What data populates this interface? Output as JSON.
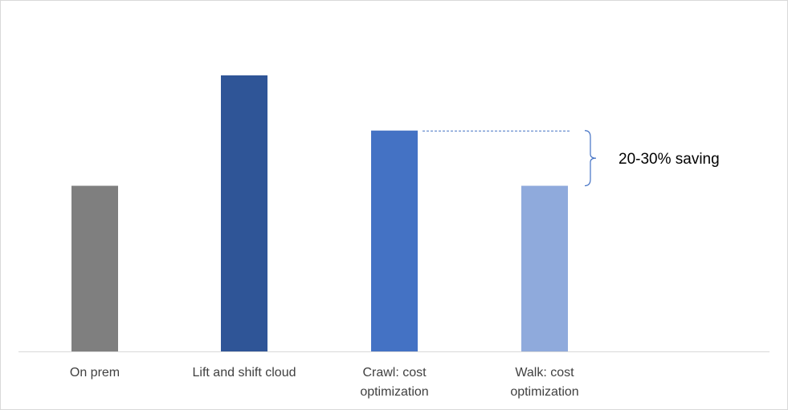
{
  "chart_data": {
    "type": "bar",
    "categories": [
      [
        "On prem"
      ],
      [
        "Lift and shift cloud"
      ],
      [
        "Crawl: cost",
        "optimization"
      ],
      [
        "Walk: cost",
        "optimization"
      ]
    ],
    "values": [
      60,
      100,
      80,
      60
    ],
    "colors": [
      "#7f7f7f",
      "#2f5597",
      "#4472c4",
      "#8faadc"
    ],
    "ylim": [
      0,
      127
    ],
    "grid": false,
    "legend": "none",
    "title": "",
    "xlabel": "",
    "ylabel": "",
    "annotation": {
      "text": "20-30% saving",
      "from_category": 2,
      "to_category": 3,
      "line_style": "dashed",
      "line_color": "#4472c4",
      "brace_color": "#4472c4"
    }
  }
}
